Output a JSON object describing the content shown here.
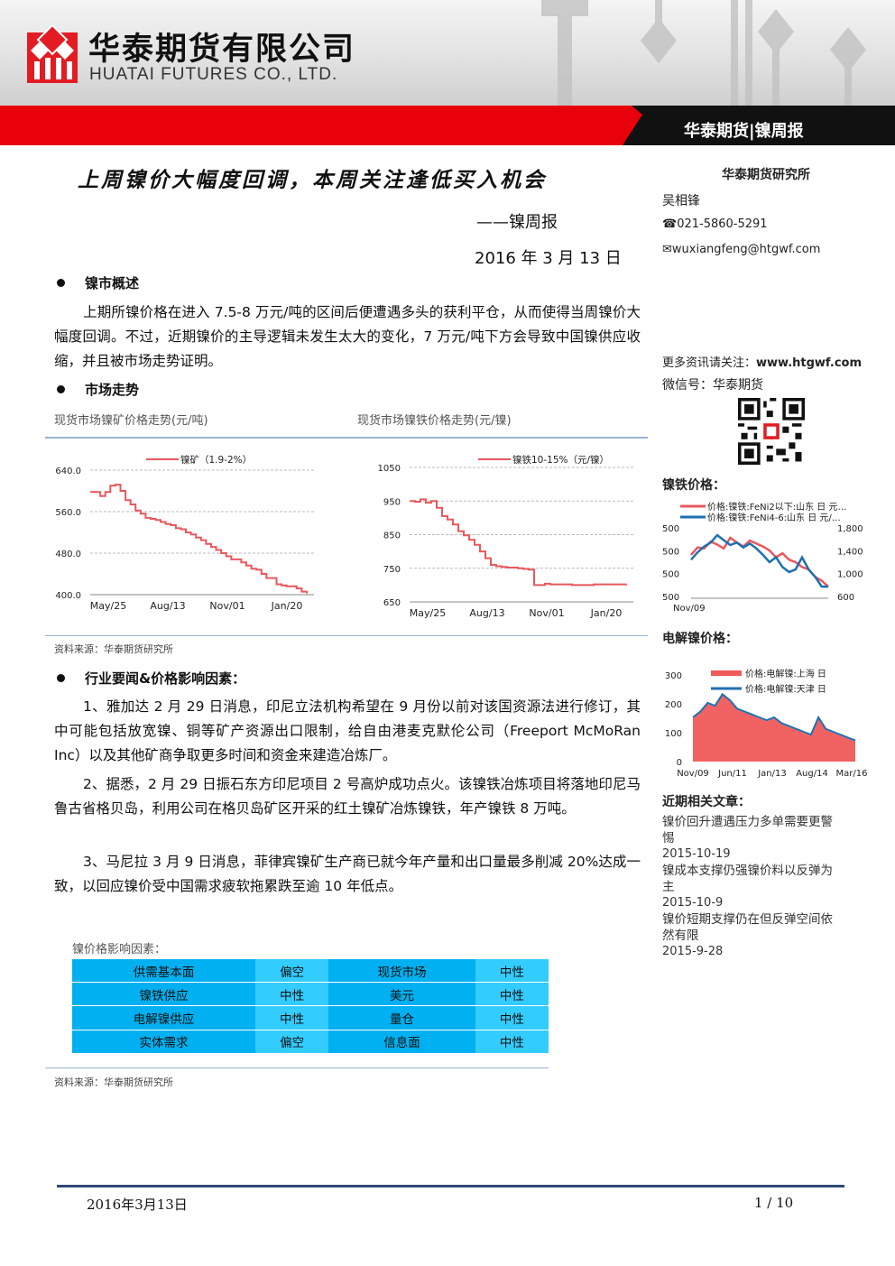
{
  "header": {
    "company_cn": "华泰期货有限公司",
    "company_en": "HUATAI FUTURES CO., LTD.",
    "band_title": "华泰期货|镍周报"
  },
  "title": {
    "main": "上周镍价大幅度回调，本周关注逢低买入机会",
    "subtitle": "——镍周报",
    "date": "2016 年 3 月 13 日"
  },
  "sections": {
    "overview_head": "镍市概述",
    "overview_text": "上期所镍价格在进入 7.5-8 万元/吨的区间后便遭遇多头的获利平仓，从而使得当周镍价大幅度回调。不过，近期镍价的主导逻辑未发生太大的变化，7 万元/吨下方会导致中国镍供应收缩，并且被市场走势证明。",
    "trend_head": "市场走势",
    "chart1_caption": "现货市场镍矿价格走势(元/吨)",
    "chart2_caption": "现货市场镍铁价格走势(元/镍)",
    "source1": "资料来源：华泰期货研究所",
    "news_head": "行业要闻&价格影响因素：",
    "news": [
      "1、雅加达 2 月 29 日消息，印尼立法机构希望在 9 月份以前对该国资源法进行修订，其中可能包括放宽镍、铜等矿产资源出口限制，给自由港麦克默伦公司（Freeport McMoRan Inc）以及其他矿商争取更多时间和资金来建造冶炼厂。",
      "2、据悉，2 月 29 日振石东方印尼项目 2 号高炉成功点火。该镍铁冶炼项目将落地印尼马鲁古省格贝岛，利用公司在格贝岛矿区开采的红土镍矿冶炼镍铁，年产镍铁 8 万吨。",
      "3、马尼拉 3 月 9 日消息，菲律宾镍矿生产商已就今年产量和出口量最多削减 20%达成一致，以回应镍价受中国需求疲软拖累跌至逾 10 年低点。"
    ],
    "table_caption": "镍价格影响因素：",
    "source2": "资料来源：华泰期货研究所"
  },
  "factors": [
    [
      "供需基本面",
      "偏空",
      "现货市场",
      "中性"
    ],
    [
      "镍铁供应",
      "中性",
      "美元",
      "中性"
    ],
    [
      "电解镍供应",
      "中性",
      "量仓",
      "中性"
    ],
    [
      "实体需求",
      "偏空",
      "信息面",
      "中性"
    ]
  ],
  "sidebar": {
    "institute": "华泰期货研究所",
    "author": "吴相锋",
    "phone": "021-5860-5291",
    "email": "wuxiangfeng@htgwf.com",
    "more_label": "更多资讯请关注：",
    "website": "www.htgwf.com",
    "wechat": "微信号：华泰期货",
    "ferronickel_head": "镍铁价格：",
    "nickel_head": "电解镍价格：",
    "articles_head": "近期相关文章：",
    "articles": [
      {
        "title": "镍价回升遭遇压力多单需要更警惕",
        "date": "2015-10-19"
      },
      {
        "title": "镍成本支撑仍强镍价料以反弹为主",
        "date": "2015-10-9"
      },
      {
        "title": "镍价短期支撑仍在但反弹空间依然有限",
        "date": "2015-9-28"
      }
    ]
  },
  "footer": {
    "date": "2016年3月13日",
    "page": "1 / 10"
  },
  "colors": {
    "red": "#e8000b",
    "navy": "#2f4a78",
    "cyan": "#00b0f0",
    "series_red": "#e8585d",
    "series_blue": "#1f6fb2"
  },
  "chart_data": [
    {
      "type": "line",
      "series": [
        {
          "name": "镍矿（1.9-2%）",
          "values": [
            598,
            598,
            590,
            598,
            610,
            612,
            600,
            582,
            574,
            562,
            556,
            548,
            546,
            544,
            540,
            536,
            534,
            528,
            526,
            520,
            516,
            510,
            505,
            498,
            492,
            486,
            480,
            474,
            468,
            468,
            462,
            456,
            450,
            448,
            440,
            432,
            432,
            420,
            418,
            416,
            416,
            412,
            406,
            402
          ]
        }
      ],
      "x_ticks": [
        "May/25",
        "Aug/13",
        "Nov/01",
        "Jan/20"
      ],
      "y_ticks": [
        "640.0",
        "560.0",
        "480.0",
        "400.0"
      ],
      "ylim": [
        400,
        640
      ]
    },
    {
      "type": "line",
      "series": [
        {
          "name": "镍铁10-15%（元/镍）",
          "values": [
            950,
            948,
            955,
            945,
            950,
            930,
            905,
            895,
            880,
            860,
            848,
            835,
            820,
            800,
            780,
            760,
            756,
            754,
            752,
            752,
            750,
            748,
            746,
            700,
            700,
            704,
            702,
            702,
            702,
            702,
            700,
            700,
            700,
            700,
            702,
            702,
            702,
            702,
            702,
            702,
            704
          ]
        }
      ],
      "x_ticks": [
        "May/25",
        "Aug/13",
        "Nov/01",
        "Jan/20"
      ],
      "y_ticks": [
        "1050",
        "950",
        "850",
        "750",
        "650"
      ],
      "ylim": [
        650,
        1050
      ]
    },
    {
      "type": "line",
      "series": [
        {
          "name": "价格:镍铁:FeNi2以下:山东 日 元…",
          "axis": "left",
          "values": [
            1350,
            1500,
            1480,
            1620,
            1560,
            1480,
            1700,
            1600,
            1520,
            1640,
            1580,
            1520,
            1440,
            1300,
            1380,
            1250,
            1200,
            1100,
            1050,
            900,
            820,
            700
          ]
        },
        {
          "name": "价格:镍铁:FeNi4-6:山东 日 元/…",
          "axis": "right",
          "values": [
            1250,
            1400,
            1520,
            1600,
            1750,
            1650,
            1550,
            1600,
            1500,
            1580,
            1480,
            1350,
            1200,
            1300,
            1100,
            1000,
            1050,
            1300,
            1050,
            900,
            700,
            700
          ]
        }
      ],
      "x_ticks": [
        "Nov/09"
      ],
      "y_left_ticks": [
        "500",
        "500",
        "500",
        "500"
      ],
      "y_right_ticks": [
        "1,800",
        "1,400",
        "1,000",
        "600"
      ]
    },
    {
      "type": "area",
      "series": [
        {
          "name": "价格:电解镍:上海 日",
          "values": [
            150,
            170,
            200,
            190,
            230,
            210,
            180,
            170,
            160,
            150,
            140,
            150,
            130,
            120,
            110,
            100,
            90,
            150,
            110,
            100,
            90,
            80,
            70
          ]
        },
        {
          "name": "价格:电解镍:天津 日",
          "values": [
            150,
            170,
            200,
            190,
            230,
            210,
            180,
            170,
            160,
            150,
            140,
            150,
            130,
            120,
            110,
            100,
            90,
            150,
            110,
            100,
            90,
            80,
            70
          ]
        }
      ],
      "x_ticks": [
        "Nov/09",
        "Jun/11",
        "Jan/13",
        "Aug/14",
        "Mar/16"
      ],
      "y_ticks": [
        "300",
        "200",
        "100",
        "0"
      ],
      "ylim": [
        0,
        300
      ]
    }
  ]
}
